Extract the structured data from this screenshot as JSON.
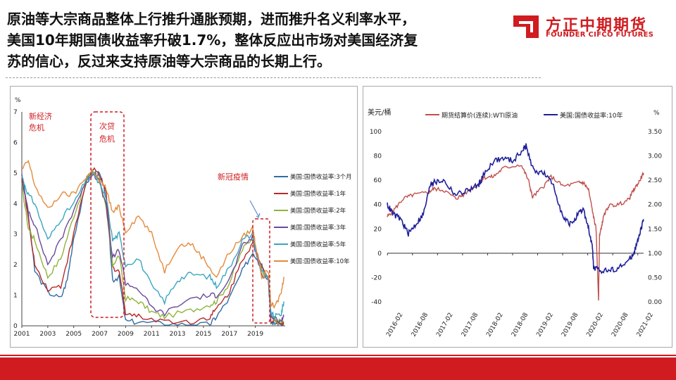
{
  "headline": {
    "line1": "原油等大宗商品整体上行推升通胀预期，进而推升名义利率水平，",
    "line2": "美国10年期国债收益率升破1.7%，整体反应出市场对美国经济复",
    "line3": "苏的信心，反过来支持原油等大宗商品的长期上行。"
  },
  "logo": {
    "name_cn": "方正中期期货",
    "name_en": "FOUNDER CIFCO FUTURES",
    "color": "#d01c20"
  },
  "chart_data": [
    {
      "type": "line",
      "ylabel": "%",
      "ylim": [
        0,
        7
      ],
      "yticks": [
        "0",
        "1",
        "2",
        "3",
        "4",
        "5",
        "6",
        "7"
      ],
      "xlim": [
        2001,
        2021.3
      ],
      "xticks": [
        "2001",
        "2003",
        "2005",
        "2007",
        "2009",
        "2011",
        "2013",
        "2015",
        "2017",
        "2019"
      ],
      "annotations": [
        {
          "text": "新经济危机"
        },
        {
          "text": "次贷危机"
        },
        {
          "text": "新冠疫情"
        }
      ],
      "legend_position": "right",
      "series": [
        {
          "name": "美国:国债收益率:3个月",
          "color": "#2e6da4",
          "x": [
            2001,
            2001.5,
            2002,
            2003,
            2004,
            2004.5,
            2005,
            2006,
            2006.5,
            2007,
            2007.5,
            2008,
            2008.5,
            2009,
            2010,
            2012,
            2014,
            2015.5,
            2016,
            2017,
            2018,
            2018.8,
            2019,
            2019.5,
            2020,
            2020.2,
            2020.5,
            2021,
            2021.2
          ],
          "y": [
            5.0,
            3.6,
            1.8,
            1.1,
            0.9,
            1.5,
            2.9,
            4.7,
            5.0,
            4.95,
            4.2,
            1.5,
            1.6,
            0.15,
            0.12,
            0.07,
            0.03,
            0.05,
            0.3,
            0.9,
            1.8,
            2.4,
            2.3,
            2.0,
            1.55,
            0.1,
            0.1,
            0.05,
            0.05
          ]
        },
        {
          "name": "美国:国债收益率:1年",
          "color": "#b52a2a",
          "x": [
            2001,
            2001.5,
            2002,
            2003,
            2004,
            2005,
            2006,
            2006.5,
            2007,
            2007.5,
            2008,
            2008.5,
            2009,
            2010,
            2012,
            2014,
            2015.5,
            2016,
            2017,
            2018,
            2018.8,
            2019,
            2019.5,
            2020,
            2020.2,
            2020.5,
            2021,
            2021.2
          ],
          "y": [
            4.9,
            3.5,
            2.0,
            1.2,
            1.3,
            3.0,
            4.8,
            5.1,
            4.95,
            4.3,
            1.9,
            1.8,
            0.45,
            0.3,
            0.17,
            0.12,
            0.3,
            0.55,
            1.1,
            2.2,
            2.7,
            2.5,
            2.0,
            1.55,
            0.2,
            0.15,
            0.1,
            0.08
          ]
        },
        {
          "name": "美国:国债收益率:2年",
          "color": "#8fb33c",
          "x": [
            2001,
            2001.5,
            2002,
            2003,
            2004,
            2005,
            2006,
            2006.5,
            2007,
            2007.5,
            2008,
            2008.5,
            2009,
            2010,
            2011,
            2012,
            2014,
            2015.5,
            2016,
            2017,
            2018,
            2018.8,
            2019,
            2019.5,
            2020,
            2020.2,
            2020.5,
            2021,
            2021.2
          ],
          "y": [
            4.6,
            3.2,
            2.8,
            1.6,
            2.2,
            3.6,
            4.8,
            5.0,
            4.8,
            3.8,
            2.0,
            2.3,
            0.9,
            0.8,
            0.45,
            0.3,
            0.5,
            0.7,
            0.8,
            1.4,
            2.5,
            2.9,
            2.5,
            1.8,
            1.55,
            0.3,
            0.15,
            0.12,
            0.15
          ]
        },
        {
          "name": "美国:国债收益率:3年",
          "color": "#6a4a9c",
          "x": [
            2001,
            2001.5,
            2002,
            2003,
            2004,
            2005,
            2006,
            2006.5,
            2007,
            2007.5,
            2008,
            2008.5,
            2009,
            2010,
            2011,
            2012,
            2014,
            2015.5,
            2016,
            2017,
            2018,
            2018.8,
            2019,
            2019.5,
            2020,
            2020.2,
            2020.5,
            2021,
            2021.2
          ],
          "y": [
            4.7,
            3.8,
            3.3,
            2.0,
            2.8,
            3.8,
            4.8,
            5.0,
            4.7,
            3.9,
            2.2,
            2.5,
            1.4,
            1.2,
            0.6,
            0.4,
            0.9,
            1.0,
            1.0,
            1.5,
            2.6,
            2.9,
            2.4,
            1.7,
            1.5,
            0.35,
            0.2,
            0.2,
            0.3
          ]
        },
        {
          "name": "美国:国债收益率:5年",
          "color": "#3aa6c0",
          "x": [
            2001,
            2001.5,
            2002,
            2003,
            2004,
            2005,
            2006,
            2006.5,
            2007,
            2007.5,
            2008,
            2008.5,
            2009,
            2010,
            2011,
            2012,
            2013,
            2014,
            2015.5,
            2016,
            2017,
            2018,
            2018.8,
            2019,
            2019.5,
            2020,
            2020.2,
            2020.5,
            2021,
            2021.2
          ],
          "y": [
            4.9,
            4.3,
            4.0,
            2.8,
            3.5,
            4.0,
            4.8,
            5.0,
            4.6,
            4.2,
            2.8,
            3.0,
            2.0,
            2.2,
            1.3,
            0.8,
            1.5,
            1.7,
            1.6,
            1.3,
            1.9,
            2.8,
            3.0,
            2.5,
            1.8,
            1.5,
            0.4,
            0.3,
            0.4,
            0.8
          ]
        },
        {
          "name": "美国:国债收益率:10年",
          "color": "#e48a3c",
          "x": [
            2001,
            2001.5,
            2002,
            2003,
            2004,
            2005,
            2006,
            2006.5,
            2007,
            2007.5,
            2008,
            2008.5,
            2009,
            2010,
            2011,
            2012,
            2013,
            2014,
            2015,
            2016,
            2017,
            2018,
            2018.8,
            2019,
            2019.5,
            2020,
            2020.2,
            2020.5,
            2021,
            2021.2
          ],
          "y": [
            5.1,
            5.4,
            4.6,
            3.8,
            4.3,
            4.3,
            4.9,
            5.1,
            4.7,
            4.5,
            3.7,
            3.9,
            3.1,
            3.6,
            3.0,
            1.8,
            2.6,
            2.7,
            2.2,
            1.6,
            2.4,
            2.9,
            3.2,
            2.7,
            1.6,
            1.8,
            0.7,
            0.6,
            1.1,
            1.6
          ]
        }
      ]
    },
    {
      "type": "line",
      "ylabel": "美元/桶",
      "y2label": "%",
      "ylim": [
        -40,
        100
      ],
      "yticks": [
        "100",
        "80",
        "60",
        "40",
        "20",
        "0",
        "-20",
        "-40"
      ],
      "y2lim": [
        0,
        3.5
      ],
      "y2ticks": [
        "3.50",
        "3.00",
        "2.50",
        "2.00",
        "1.50",
        "1.00",
        "0.50",
        "0.00"
      ],
      "xlim": [
        2016.08,
        2021.2
      ],
      "xticks": [
        "2016-02",
        "2016-08",
        "2017-02",
        "2017-08",
        "2018-02",
        "2018-08",
        "2019-02",
        "2019-08",
        "2020-02",
        "2020-08",
        "2021-02"
      ],
      "legend_position": "top",
      "series": [
        {
          "name": "期货结算价(连续):WTI原油",
          "color": "#c0504d",
          "axis": "left",
          "x": [
            2016.08,
            2016.2,
            2016.4,
            2016.6,
            2016.9,
            2017.0,
            2017.2,
            2017.45,
            2017.6,
            2017.9,
            2018.0,
            2018.2,
            2018.4,
            2018.75,
            2018.9,
            2018.98,
            2019.2,
            2019.35,
            2019.6,
            2019.9,
            2020.0,
            2020.1,
            2020.2,
            2020.25,
            2020.3,
            2020.32,
            2020.35,
            2020.4,
            2020.5,
            2020.7,
            2020.9,
            2021.0,
            2021.1,
            2021.2
          ],
          "y": [
            30,
            35,
            45,
            48,
            50,
            53,
            52,
            45,
            48,
            57,
            62,
            63,
            70,
            73,
            60,
            46,
            55,
            63,
            55,
            58,
            58,
            52,
            30,
            20,
            -38,
            15,
            20,
            30,
            39,
            40,
            44,
            52,
            58,
            66
          ]
        },
        {
          "name": "美国:国债收益率:10年",
          "color": "#1f1f9a",
          "axis": "right",
          "x": [
            2016.08,
            2016.2,
            2016.35,
            2016.5,
            2016.65,
            2016.8,
            2016.95,
            2017.0,
            2017.2,
            2017.45,
            2017.7,
            2017.9,
            2018.0,
            2018.2,
            2018.4,
            2018.6,
            2018.8,
            2018.85,
            2019.0,
            2019.2,
            2019.4,
            2019.6,
            2019.75,
            2019.9,
            2020.0,
            2020.1,
            2020.18,
            2020.2,
            2020.3,
            2020.5,
            2020.7,
            2020.9,
            2021.0,
            2021.1,
            2021.2
          ],
          "y": [
            2.0,
            1.8,
            1.7,
            1.4,
            1.6,
            1.8,
            2.45,
            2.45,
            2.5,
            2.2,
            2.3,
            2.4,
            2.6,
            2.9,
            2.95,
            2.9,
            3.15,
            3.2,
            2.7,
            2.65,
            2.4,
            1.7,
            1.6,
            1.8,
            1.9,
            1.5,
            1.1,
            0.7,
            0.65,
            0.65,
            0.7,
            0.85,
            1.0,
            1.3,
            1.7
          ]
        }
      ]
    }
  ]
}
